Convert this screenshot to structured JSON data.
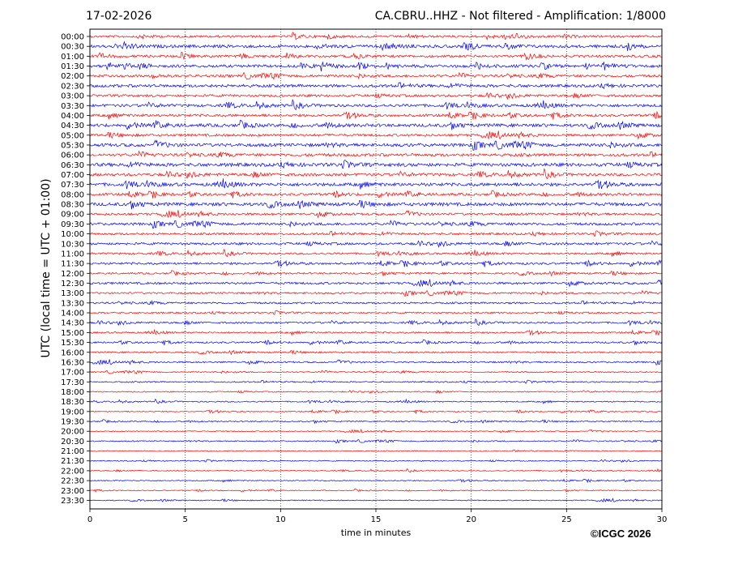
{
  "header": {
    "date": "17-02-2026",
    "station_title": "CA.CBRU..HHZ - Not filtered - Amplification: 1/8000"
  },
  "footer": {
    "copyright": "©ICGC 2026"
  },
  "chart_data": {
    "type": "line",
    "title": "CA.CBRU..HHZ - Not filtered - Amplification: 1/8000",
    "xlabel": "time in minutes",
    "ylabel": "UTC (local time = UTC + 01:00)",
    "xlim": [
      0,
      30
    ],
    "x_ticks": [
      "0",
      "5",
      "10",
      "15",
      "20",
      "25",
      "30"
    ],
    "grid": "vertical dotted",
    "series_colors": [
      "#ff0000",
      "#0000ff"
    ],
    "rows": [
      "00:00",
      "00:30",
      "01:00",
      "01:30",
      "02:00",
      "02:30",
      "03:00",
      "03:30",
      "04:00",
      "04:30",
      "05:00",
      "05:30",
      "06:00",
      "06:30",
      "07:00",
      "07:30",
      "08:00",
      "08:30",
      "09:00",
      "09:30",
      "10:00",
      "10:30",
      "11:00",
      "11:30",
      "12:00",
      "12:30",
      "13:00",
      "13:30",
      "14:00",
      "14:30",
      "15:00",
      "15:30",
      "16:00",
      "16:30",
      "17:00",
      "17:30",
      "18:00",
      "18:30",
      "19:00",
      "19:30",
      "20:00",
      "20:30",
      "21:00",
      "21:30",
      "22:00",
      "22:30",
      "23:00",
      "23:30"
    ],
    "relative_amplitude": [
      0.55,
      0.75,
      0.6,
      0.7,
      0.62,
      0.72,
      0.6,
      0.7,
      0.65,
      0.78,
      0.62,
      0.8,
      0.7,
      0.85,
      0.7,
      0.8,
      0.62,
      0.82,
      0.58,
      0.65,
      0.55,
      0.6,
      0.5,
      0.55,
      0.45,
      0.55,
      0.45,
      0.45,
      0.42,
      0.45,
      0.4,
      0.42,
      0.38,
      0.4,
      0.3,
      0.32,
      0.28,
      0.3,
      0.28,
      0.3,
      0.25,
      0.28,
      0.25,
      0.25,
      0.22,
      0.25,
      0.22,
      0.25
    ]
  }
}
